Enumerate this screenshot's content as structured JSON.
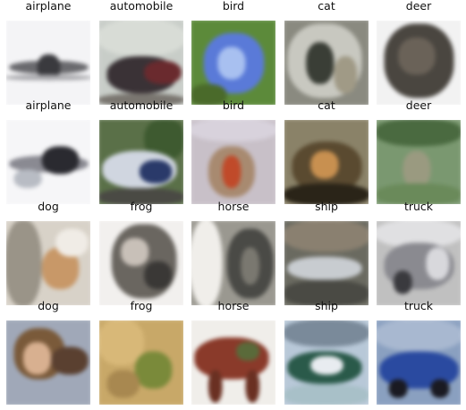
{
  "images": [
    {
      "label": "airplane"
    },
    {
      "label": "automobile"
    },
    {
      "label": "bird"
    },
    {
      "label": "cat"
    },
    {
      "label": "deer"
    },
    {
      "label": "airplane"
    },
    {
      "label": "automobile"
    },
    {
      "label": "bird"
    },
    {
      "label": "cat"
    },
    {
      "label": "deer"
    },
    {
      "label": "dog"
    },
    {
      "label": "frog"
    },
    {
      "label": "horse"
    },
    {
      "label": "ship"
    },
    {
      "label": "truck"
    },
    {
      "label": "dog"
    },
    {
      "label": "frog"
    },
    {
      "label": "horse"
    },
    {
      "label": "ship"
    },
    {
      "label": "truck"
    }
  ]
}
